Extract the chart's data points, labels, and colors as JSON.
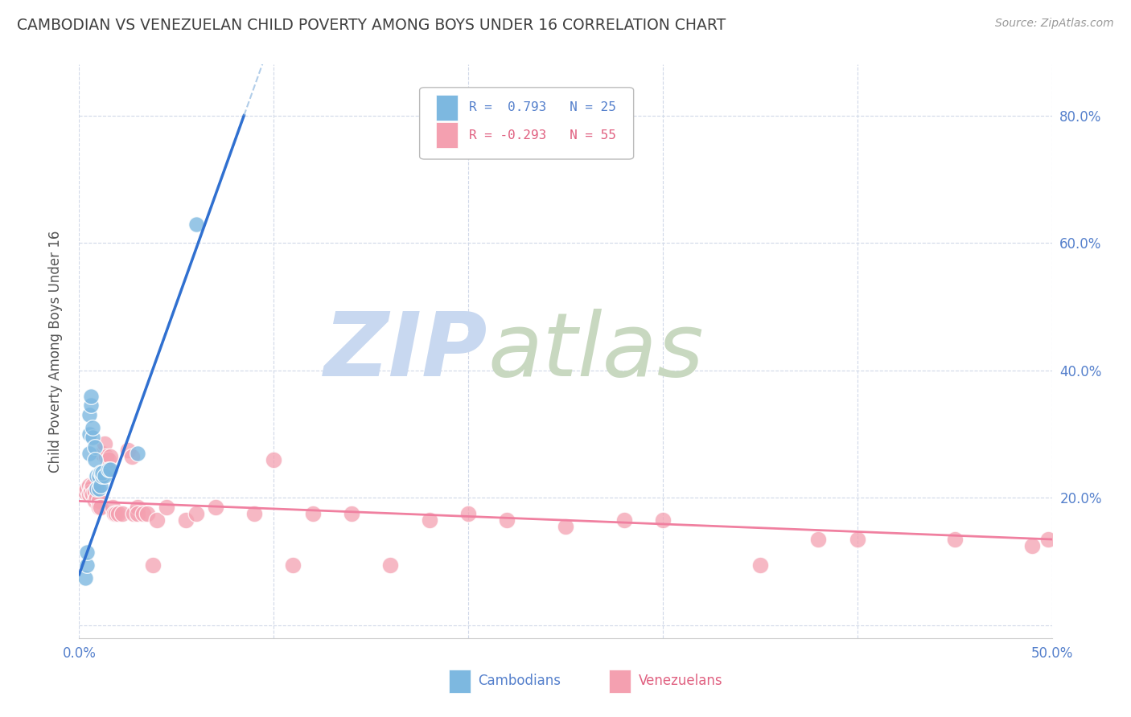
{
  "title": "CAMBODIAN VS VENEZUELAN CHILD POVERTY AMONG BOYS UNDER 16 CORRELATION CHART",
  "source": "Source: ZipAtlas.com",
  "ylabel": "Child Poverty Among Boys Under 16",
  "xlim": [
    0.0,
    0.5
  ],
  "ylim": [
    -0.02,
    0.88
  ],
  "yticks": [
    0.0,
    0.2,
    0.4,
    0.6,
    0.8
  ],
  "ytick_labels": [
    "",
    "20.0%",
    "40.0%",
    "60.0%",
    "80.0%"
  ],
  "xticks": [
    0.0,
    0.1,
    0.2,
    0.3,
    0.4,
    0.5
  ],
  "xtick_labels": [
    "0.0%",
    "",
    "",
    "",
    "",
    "50.0%"
  ],
  "legend_r_cambodian": "R =  0.793",
  "legend_n_cambodian": "N = 25",
  "legend_r_venezuelan": "R = -0.293",
  "legend_n_venezuelan": "N = 55",
  "cambodian_color": "#7db8e0",
  "venezuelan_color": "#f4a0b0",
  "cambodian_line_color": "#3070d0",
  "venezuelan_line_color": "#f080a0",
  "watermark_zip": "ZIP",
  "watermark_atlas": "atlas",
  "watermark_color_zip": "#c8d8f0",
  "watermark_color_atlas": "#c8d8c0",
  "background_color": "#ffffff",
  "grid_color": "#d0d8e8",
  "title_color": "#404040",
  "camb_line_slope": 8.5,
  "camb_line_intercept": 0.08,
  "vene_line_slope": -0.12,
  "vene_line_intercept": 0.195,
  "cambodian_points": [
    [
      0.003,
      0.075
    ],
    [
      0.004,
      0.095
    ],
    [
      0.004,
      0.115
    ],
    [
      0.005,
      0.27
    ],
    [
      0.005,
      0.3
    ],
    [
      0.005,
      0.33
    ],
    [
      0.006,
      0.345
    ],
    [
      0.006,
      0.36
    ],
    [
      0.007,
      0.295
    ],
    [
      0.007,
      0.31
    ],
    [
      0.008,
      0.28
    ],
    [
      0.008,
      0.26
    ],
    [
      0.009,
      0.235
    ],
    [
      0.009,
      0.215
    ],
    [
      0.01,
      0.235
    ],
    [
      0.01,
      0.215
    ],
    [
      0.011,
      0.24
    ],
    [
      0.011,
      0.22
    ],
    [
      0.012,
      0.235
    ],
    [
      0.012,
      0.24
    ],
    [
      0.013,
      0.235
    ],
    [
      0.015,
      0.245
    ],
    [
      0.016,
      0.245
    ],
    [
      0.03,
      0.27
    ],
    [
      0.06,
      0.63
    ]
  ],
  "venezuelan_points": [
    [
      0.003,
      0.21
    ],
    [
      0.004,
      0.215
    ],
    [
      0.005,
      0.22
    ],
    [
      0.005,
      0.205
    ],
    [
      0.006,
      0.215
    ],
    [
      0.006,
      0.21
    ],
    [
      0.007,
      0.22
    ],
    [
      0.007,
      0.205
    ],
    [
      0.008,
      0.21
    ],
    [
      0.008,
      0.195
    ],
    [
      0.009,
      0.2
    ],
    [
      0.01,
      0.195
    ],
    [
      0.01,
      0.185
    ],
    [
      0.011,
      0.185
    ],
    [
      0.012,
      0.27
    ],
    [
      0.013,
      0.285
    ],
    [
      0.014,
      0.265
    ],
    [
      0.015,
      0.26
    ],
    [
      0.016,
      0.265
    ],
    [
      0.017,
      0.185
    ],
    [
      0.018,
      0.175
    ],
    [
      0.019,
      0.175
    ],
    [
      0.02,
      0.175
    ],
    [
      0.022,
      0.175
    ],
    [
      0.025,
      0.275
    ],
    [
      0.027,
      0.265
    ],
    [
      0.028,
      0.175
    ],
    [
      0.03,
      0.185
    ],
    [
      0.03,
      0.175
    ],
    [
      0.033,
      0.175
    ],
    [
      0.035,
      0.175
    ],
    [
      0.038,
      0.095
    ],
    [
      0.04,
      0.165
    ],
    [
      0.045,
      0.185
    ],
    [
      0.055,
      0.165
    ],
    [
      0.06,
      0.175
    ],
    [
      0.07,
      0.185
    ],
    [
      0.09,
      0.175
    ],
    [
      0.1,
      0.26
    ],
    [
      0.11,
      0.095
    ],
    [
      0.12,
      0.175
    ],
    [
      0.14,
      0.175
    ],
    [
      0.16,
      0.095
    ],
    [
      0.18,
      0.165
    ],
    [
      0.2,
      0.175
    ],
    [
      0.22,
      0.165
    ],
    [
      0.25,
      0.155
    ],
    [
      0.28,
      0.165
    ],
    [
      0.3,
      0.165
    ],
    [
      0.35,
      0.095
    ],
    [
      0.38,
      0.135
    ],
    [
      0.4,
      0.135
    ],
    [
      0.45,
      0.135
    ],
    [
      0.49,
      0.125
    ],
    [
      0.498,
      0.135
    ]
  ]
}
